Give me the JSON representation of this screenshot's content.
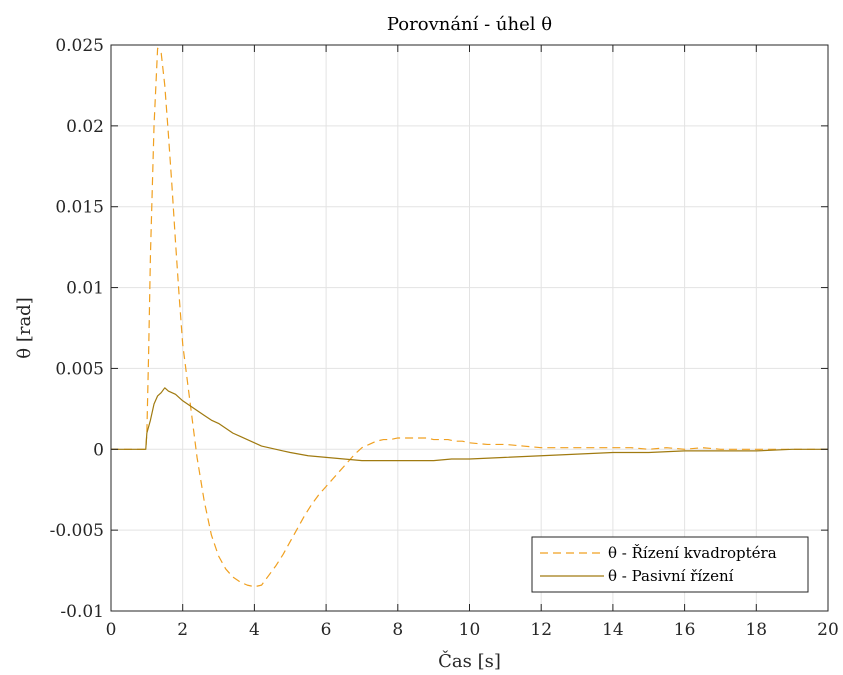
{
  "chart_data": {
    "type": "line",
    "title": "Porovnání - úhel θ",
    "xlabel": "Čas [s]",
    "ylabel": "θ [rad]",
    "xlim": [
      0,
      20
    ],
    "ylim": [
      -0.01,
      0.025
    ],
    "xticks": [
      0,
      2,
      4,
      6,
      8,
      10,
      12,
      14,
      16,
      18,
      20
    ],
    "xtick_labels": [
      "0",
      "2",
      "4",
      "6",
      "8",
      "10",
      "12",
      "14",
      "16",
      "18",
      "20"
    ],
    "yticks": [
      -0.01,
      -0.005,
      0,
      0.005,
      0.01,
      0.015,
      0.02,
      0.025
    ],
    "ytick_labels": [
      "-0.01",
      "-0.005",
      "0",
      "0.005",
      "0.01",
      "0.015",
      "0.02",
      "0.025"
    ],
    "grid": true,
    "legend_position": "bottom-right",
    "series": [
      {
        "name": "θ - Řízení kvadroptéra",
        "color": "#f0a020",
        "style": "dashed",
        "x": [
          0,
          0.97,
          1.0,
          1.05,
          1.1,
          1.2,
          1.3,
          1.4,
          1.5,
          1.6,
          1.7,
          1.8,
          1.9,
          2.0,
          2.2,
          2.4,
          2.6,
          2.8,
          3.0,
          3.2,
          3.4,
          3.6,
          3.8,
          4.0,
          4.2,
          4.4,
          4.6,
          4.8,
          5.0,
          5.2,
          5.4,
          5.6,
          5.8,
          6.0,
          6.2,
          6.4,
          6.6,
          6.8,
          7.0,
          7.2,
          7.4,
          7.6,
          7.8,
          8.0,
          8.2,
          8.4,
          8.6,
          8.8,
          9.0,
          9.2,
          9.4,
          9.6,
          9.8,
          10.0,
          10.5,
          11.0,
          11.5,
          12.0,
          12.5,
          13.0,
          13.5,
          14.0,
          14.5,
          15.0,
          15.5,
          16.0,
          16.5,
          17.0,
          17.5,
          18.0,
          18.5,
          19.0,
          19.5,
          20.0
        ],
        "values": [
          0,
          0,
          0.001,
          0.006,
          0.012,
          0.02,
          0.0248,
          0.0245,
          0.0225,
          0.0195,
          0.0163,
          0.0128,
          0.0095,
          0.0065,
          0.003,
          -0.0005,
          -0.0032,
          -0.0053,
          -0.0066,
          -0.0074,
          -0.0079,
          -0.0082,
          -0.0084,
          -0.0085,
          -0.0084,
          -0.0078,
          -0.0072,
          -0.0065,
          -0.0057,
          -0.0049,
          -0.0041,
          -0.0034,
          -0.0028,
          -0.0023,
          -0.0018,
          -0.0013,
          -0.0008,
          -0.0003,
          0.0001,
          0.0003,
          0.0005,
          0.0006,
          0.0006,
          0.0007,
          0.0007,
          0.0007,
          0.0007,
          0.0007,
          0.0006,
          0.0006,
          0.0006,
          0.0005,
          0.0005,
          0.0004,
          0.0003,
          0.0003,
          0.0002,
          0.0001,
          0.0001,
          0.0001,
          0.0001,
          0.0001,
          0.0001,
          0.0,
          0.0001,
          0.0,
          0.0001,
          0.0,
          0.0,
          0.0,
          0.0,
          0.0,
          0.0,
          0.0
        ]
      },
      {
        "name": "θ - Pasivní řízení",
        "color": "#a07a10",
        "style": "solid",
        "x": [
          0,
          0.97,
          1.0,
          1.1,
          1.2,
          1.3,
          1.4,
          1.5,
          1.6,
          1.7,
          1.8,
          1.9,
          2.0,
          2.2,
          2.4,
          2.6,
          2.8,
          3.0,
          3.2,
          3.4,
          3.6,
          3.8,
          4.0,
          4.2,
          4.4,
          4.6,
          4.8,
          5.0,
          5.5,
          6.0,
          6.5,
          7.0,
          7.5,
          8.0,
          8.5,
          9.0,
          9.5,
          10.0,
          11.0,
          12.0,
          13.0,
          14.0,
          15.0,
          16.0,
          17.0,
          18.0,
          19.0,
          20.0
        ],
        "values": [
          0,
          0,
          0.001,
          0.0018,
          0.0028,
          0.0033,
          0.0035,
          0.0038,
          0.0036,
          0.0035,
          0.0034,
          0.0032,
          0.003,
          0.0027,
          0.0024,
          0.0021,
          0.0018,
          0.0016,
          0.0013,
          0.001,
          0.0008,
          0.0006,
          0.0004,
          0.0002,
          0.0001,
          0.0,
          -0.0001,
          -0.0002,
          -0.0004,
          -0.0005,
          -0.0006,
          -0.0007,
          -0.0007,
          -0.0007,
          -0.0007,
          -0.0007,
          -0.0006,
          -0.0006,
          -0.0005,
          -0.0004,
          -0.0003,
          -0.0002,
          -0.0002,
          -0.0001,
          -0.0001,
          -0.0001,
          0.0,
          0.0
        ]
      }
    ]
  }
}
